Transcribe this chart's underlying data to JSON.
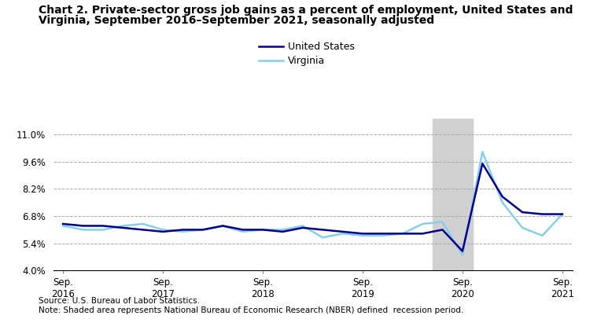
{
  "title_line1": "Chart 2. Private-sector gross job gains as a percent of employment, United States and",
  "title_line2": "Virginia, September 2016–September 2021, seasonally adjusted",
  "title_fontsize": 10,
  "source_note": "Source: U.S. Bureau of Labor Statistics.\nNote: Shaded area represents National Bureau of Economic Research (NBER) defined  recession period.",
  "ylim": [
    4.0,
    11.8
  ],
  "yticks": [
    4.0,
    5.4,
    6.8,
    8.2,
    9.6,
    11.0
  ],
  "ytick_labels": [
    "4.0%",
    "5.4%",
    "6.8%",
    "8.2%",
    "9.6%",
    "11.0%"
  ],
  "recession_start": 18.5,
  "recession_end": 20.5,
  "us_color": "#00008B",
  "va_color": "#87CEEB",
  "us_label": "United States",
  "va_label": "Virginia",
  "background_color": "#ffffff",
  "x_tick_positions": [
    0,
    5,
    10,
    15,
    20,
    25
  ],
  "x_labels": [
    "Sep.\n2016",
    "Sep.\n2017",
    "Sep.\n2018",
    "Sep.\n2019",
    "Sep.\n2020",
    "Sep.\n2021"
  ],
  "us_data": [
    6.4,
    6.3,
    6.3,
    6.2,
    6.1,
    6.0,
    6.1,
    6.1,
    6.3,
    6.1,
    6.1,
    6.0,
    6.2,
    6.1,
    6.0,
    5.9,
    5.9,
    5.9,
    5.9,
    6.1,
    5.0,
    9.5,
    7.8,
    7.0,
    6.9,
    6.9
  ],
  "va_data": [
    6.3,
    6.1,
    6.1,
    6.3,
    6.4,
    6.1,
    6.0,
    6.1,
    6.3,
    6.0,
    6.1,
    6.1,
    6.3,
    5.7,
    5.9,
    5.8,
    5.8,
    5.9,
    6.4,
    6.5,
    4.8,
    10.1,
    7.5,
    6.2,
    5.8,
    6.9
  ]
}
